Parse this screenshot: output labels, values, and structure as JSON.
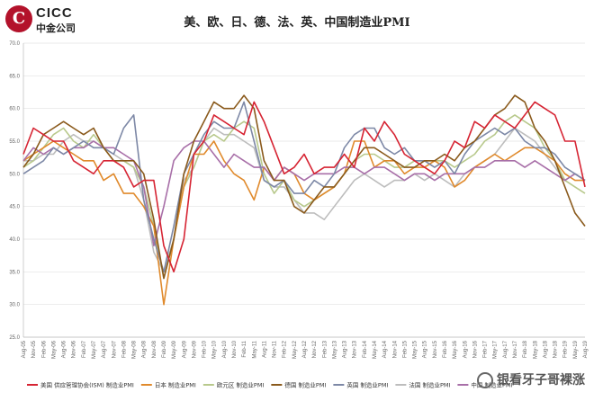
{
  "logo": {
    "en": "CICC",
    "cn": "中金公司"
  },
  "watermark": "银看牙子哥裸涨",
  "chart_data": {
    "type": "line",
    "title": "美、欧、日、德、法、英、中国制造业PMI",
    "ylim": [
      25,
      70
    ],
    "yticks": [
      "70.0",
      "65.0",
      "60.0",
      "55.0",
      "50.0",
      "45.0",
      "40.0",
      "35.0",
      "30.0",
      "25.0"
    ],
    "xticks": [
      "Aug-05",
      "Nov-05",
      "Feb-06",
      "May-06",
      "Aug-06",
      "Nov-06",
      "Feb-07",
      "May-07",
      "Aug-07",
      "Nov-07",
      "Feb-08",
      "May-08",
      "Aug-08",
      "Nov-08",
      "Feb-09",
      "May-09",
      "Aug-09",
      "Nov-09",
      "Feb-10",
      "May-10",
      "Aug-10",
      "Nov-10",
      "Feb-11",
      "May-11",
      "Aug-11",
      "Nov-11",
      "Feb-12",
      "May-12",
      "Aug-12",
      "Nov-12",
      "Feb-13",
      "May-13",
      "Aug-13",
      "Nov-13",
      "Feb-14",
      "May-14",
      "Aug-14",
      "Nov-14",
      "Feb-15",
      "May-15",
      "Aug-15",
      "Nov-15",
      "Feb-16",
      "May-16",
      "Aug-16",
      "Nov-16",
      "Feb-17",
      "May-17",
      "Aug-17",
      "Nov-17",
      "Feb-18",
      "May-18",
      "Aug-18",
      "Nov-18",
      "Feb-19",
      "May-19",
      "Aug-19"
    ],
    "grid": true,
    "legend_position": "bottom",
    "series": [
      {
        "name": "美国 供应管理协会(ISM) 制造业PMI",
        "color": "#d62433",
        "values": [
          53,
          57,
          56,
          55,
          55,
          52,
          51,
          50,
          52,
          52,
          51,
          48,
          49,
          49,
          39,
          35,
          40,
          53,
          55,
          59,
          58,
          57,
          56,
          61,
          58,
          54,
          50,
          51,
          53,
          50,
          51,
          51,
          53,
          51,
          57,
          55,
          58,
          56,
          53,
          52,
          51,
          50,
          52,
          55,
          54,
          58,
          57,
          59,
          58,
          57,
          59,
          61,
          60,
          59,
          55,
          55,
          48
        ]
      },
      {
        "name": "日本 制造业PMI",
        "color": "#e08a2c",
        "values": [
          52,
          53,
          54,
          55,
          54,
          53,
          52,
          52,
          49,
          50,
          47,
          47,
          45,
          42,
          30,
          40,
          48,
          53,
          53,
          55,
          52,
          50,
          49,
          46,
          51,
          49,
          51,
          50,
          47,
          46,
          47,
          48,
          50,
          55,
          55,
          51,
          52,
          52,
          50,
          51,
          51,
          52,
          51,
          48,
          49,
          51,
          52,
          53,
          52,
          53,
          54,
          54,
          53,
          52,
          50,
          49,
          49
        ]
      },
      {
        "name": "欧元区 制造业PMI",
        "color": "#b8c98c",
        "values": [
          51,
          52,
          54,
          56,
          57,
          55,
          54,
          56,
          54,
          52,
          52,
          51,
          48,
          42,
          34,
          40,
          48,
          51,
          55,
          56,
          55,
          57,
          58,
          57,
          50,
          47,
          49,
          46,
          45,
          46,
          47,
          48,
          50,
          52,
          53,
          53,
          52,
          51,
          51,
          52,
          52,
          52,
          52,
          51,
          52,
          53,
          55,
          56,
          58,
          59,
          58,
          57,
          54,
          52,
          49,
          48,
          47
        ]
      },
      {
        "name": "德国 制造业PMI",
        "color": "#8a5a1c",
        "values": [
          51,
          53,
          56,
          57,
          58,
          57,
          56,
          57,
          54,
          52,
          52,
          52,
          50,
          43,
          34,
          40,
          50,
          55,
          58,
          61,
          60,
          60,
          62,
          60,
          52,
          49,
          49,
          45,
          44,
          46,
          48,
          48,
          50,
          52,
          54,
          54,
          53,
          52,
          51,
          51,
          52,
          52,
          53,
          52,
          54,
          55,
          57,
          59,
          60,
          62,
          61,
          57,
          55,
          52,
          48,
          44,
          42
        ]
      },
      {
        "name": "英国 制造业PMI",
        "color": "#7d88a6",
        "values": [
          50,
          51,
          52,
          54,
          53,
          54,
          55,
          54,
          54,
          53,
          57,
          59,
          46,
          40,
          35,
          42,
          50,
          53,
          56,
          58,
          57,
          57,
          61,
          55,
          49,
          48,
          49,
          47,
          47,
          49,
          48,
          50,
          54,
          56,
          57,
          57,
          54,
          53,
          54,
          52,
          52,
          51,
          52,
          50,
          53,
          55,
          56,
          57,
          56,
          57,
          55,
          54,
          54,
          53,
          51,
          50,
          49
        ]
      },
      {
        "name": "法国 制造业PMI",
        "color": "#bdbdbd",
        "values": [
          52,
          52,
          53,
          53,
          55,
          56,
          55,
          55,
          54,
          53,
          52,
          51,
          46,
          38,
          35,
          40,
          49,
          51,
          55,
          57,
          56,
          56,
          55,
          54,
          49,
          48,
          48,
          46,
          44,
          44,
          43,
          45,
          47,
          49,
          50,
          49,
          48,
          49,
          49,
          50,
          49,
          50,
          49,
          48,
          50,
          51,
          52,
          53,
          55,
          57,
          56,
          55,
          53,
          51,
          49,
          50,
          49
        ]
      },
      {
        "name": "中国 制造业PMI",
        "color": "#a86fa8",
        "values": [
          52,
          54,
          53,
          54,
          53,
          54,
          54,
          55,
          54,
          54,
          53,
          52,
          48,
          39,
          45,
          52,
          54,
          55,
          55,
          53,
          51,
          53,
          52,
          51,
          51,
          49,
          51,
          50,
          49,
          50,
          50,
          50,
          51,
          51,
          50,
          51,
          51,
          50,
          49,
          50,
          50,
          49,
          50,
          50,
          50,
          51,
          51,
          52,
          52,
          52,
          51,
          52,
          51,
          50,
          49,
          50,
          49
        ]
      }
    ]
  }
}
